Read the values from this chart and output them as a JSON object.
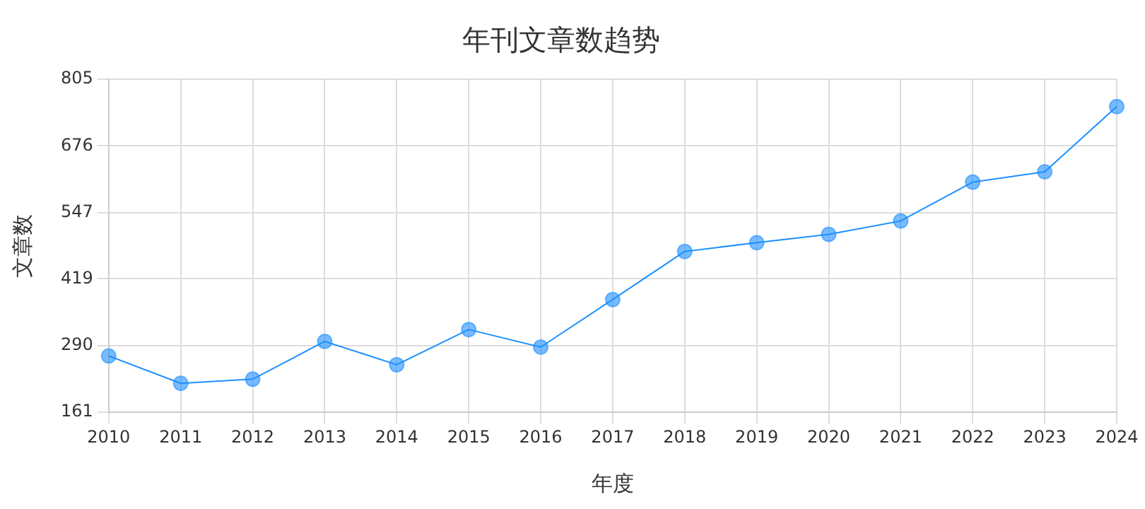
{
  "chart_data": {
    "type": "line",
    "title": "年刊文章数趋势",
    "xlabel": "年度",
    "ylabel": "文章数",
    "categories": [
      "2010",
      "2011",
      "2012",
      "2013",
      "2014",
      "2015",
      "2016",
      "2017",
      "2018",
      "2019",
      "2020",
      "2021",
      "2022",
      "2023",
      "2024"
    ],
    "series": [
      {
        "color": "#1e90ff",
        "values": [
          270,
          217,
          225,
          298,
          253,
          321,
          287,
          379,
          472,
          489,
          505,
          531,
          606,
          626,
          752
        ]
      }
    ],
    "ylim": [
      161,
      805
    ],
    "yticks": [
      161,
      290,
      419,
      547,
      676,
      805
    ],
    "grid": true,
    "marker": "circle",
    "line_style": "solid",
    "legend": false
  }
}
